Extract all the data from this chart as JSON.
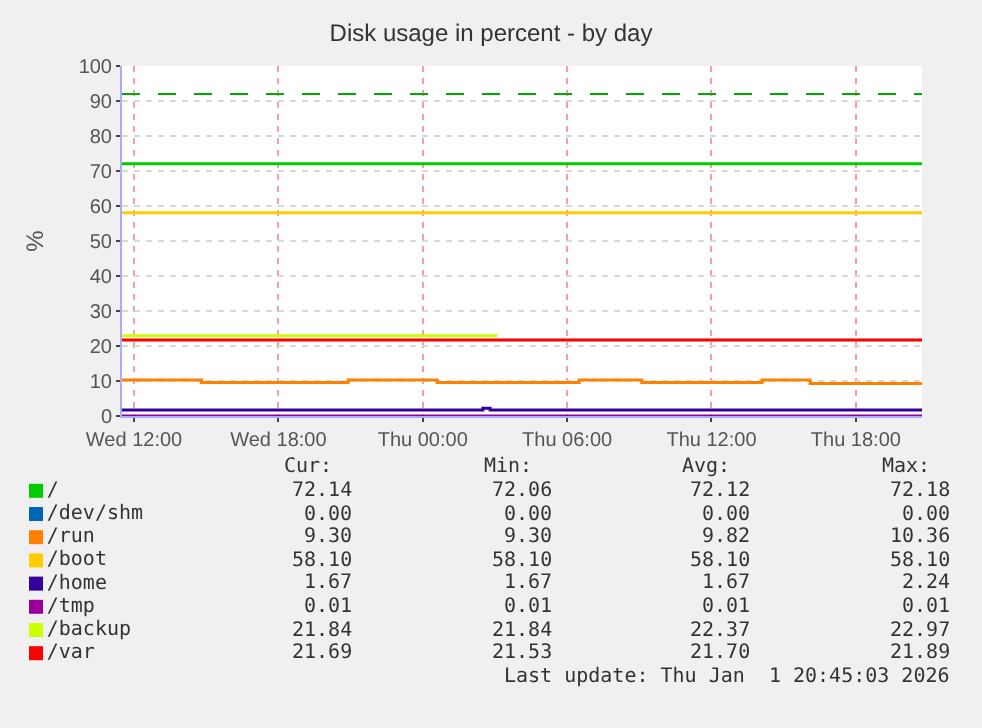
{
  "chart_data": {
    "type": "step",
    "title": "Disk usage in percent - by day",
    "ylabel": "%",
    "xlim": [
      "2025-12-31T11:30",
      "2026-01-01T20:45"
    ],
    "xticks": [
      {
        "value": "2025-12-31T12:00",
        "label": "Wed 12:00"
      },
      {
        "value": "2025-12-31T18:00",
        "label": "Wed 18:00"
      },
      {
        "value": "2026-01-01T00:00",
        "label": "Thu 00:00"
      },
      {
        "value": "2026-01-01T06:00",
        "label": "Thu 06:00"
      },
      {
        "value": "2026-01-01T12:00",
        "label": "Thu 12:00"
      },
      {
        "value": "2026-01-01T18:00",
        "label": "Thu 18:00"
      }
    ],
    "ylim": [
      0,
      100
    ],
    "yticks": [
      0,
      10,
      20,
      30,
      40,
      50,
      60,
      70,
      80,
      90,
      100
    ],
    "grid": true,
    "legend": "bottom",
    "marker": "none",
    "line_style": "solid",
    "ref_lines": [
      {
        "axis": "y",
        "value": 92,
        "color": "#00aa00",
        "line_style": "dashed"
      }
    ],
    "series": [
      {
        "name": "/",
        "color": "#00cc00",
        "x": [
          "2025-12-31T11:30",
          "2026-01-01T20:45"
        ],
        "values": [
          72.1,
          72.1
        ]
      },
      {
        "name": "/dev/shm",
        "color": "#0066b3",
        "values": [
          null,
          null
        ]
      },
      {
        "name": "/run",
        "color": "#ff8000",
        "x": [
          "2025-12-31T11:30",
          "2025-12-31T14:48",
          "2025-12-31T20:54",
          "2026-01-01T00:36",
          "2026-01-01T06:30",
          "2026-01-01T09:06",
          "2026-01-01T14:06",
          "2026-01-01T16:06",
          "2026-01-01T20:45"
        ],
        "values": [
          10.3,
          9.6,
          10.3,
          9.6,
          10.3,
          9.6,
          10.3,
          9.3,
          9.3
        ]
      },
      {
        "name": "/boot",
        "color": "#ffcc00",
        "x": [
          "2025-12-31T11:30",
          "2026-01-01T20:45"
        ],
        "values": [
          58.1,
          58.1
        ]
      },
      {
        "name": "/home",
        "color": "#330099",
        "x": [
          "2025-12-31T11:30",
          "2026-01-01T02:30",
          "2026-01-01T02:48",
          "2026-01-01T20:45"
        ],
        "values": [
          1.7,
          2.2,
          1.7,
          1.7
        ]
      },
      {
        "name": "/tmp",
        "color": "#990099",
        "x": [
          "2025-12-31T11:30",
          "2026-01-01T20:45"
        ],
        "values": [
          0,
          0
        ]
      },
      {
        "name": "/backup",
        "color": "#ccff00",
        "x": [
          "2025-12-31T11:30",
          "2026-01-01T03:06"
        ],
        "values": [
          22.9,
          22.9
        ]
      },
      {
        "name": "/var",
        "color": "#ff0000",
        "x": [
          "2025-12-31T11:30",
          "2026-01-01T20:45"
        ],
        "values": [
          21.7,
          21.7
        ]
      }
    ],
    "annotations": [
      "Cur:",
      "Min:",
      "Avg:",
      "Max:",
      "72.14",
      "72.06",
      "72.12",
      "72.18",
      "0.00",
      "0.00",
      "0.00",
      "0.00",
      "9.30",
      "9.30",
      "9.82",
      "10.36",
      "58.10",
      "58.10",
      "58.10",
      "58.10",
      "1.67",
      "1.67",
      "1.67",
      "2.24",
      "0.01",
      "0.01",
      "0.01",
      "0.01",
      "21.84",
      "21.84",
      "22.37",
      "22.97",
      "21.69",
      "21.53",
      "21.70",
      "21.89",
      "Last update: Thu Jan  1 20:45:03 2026"
    ]
  }
}
